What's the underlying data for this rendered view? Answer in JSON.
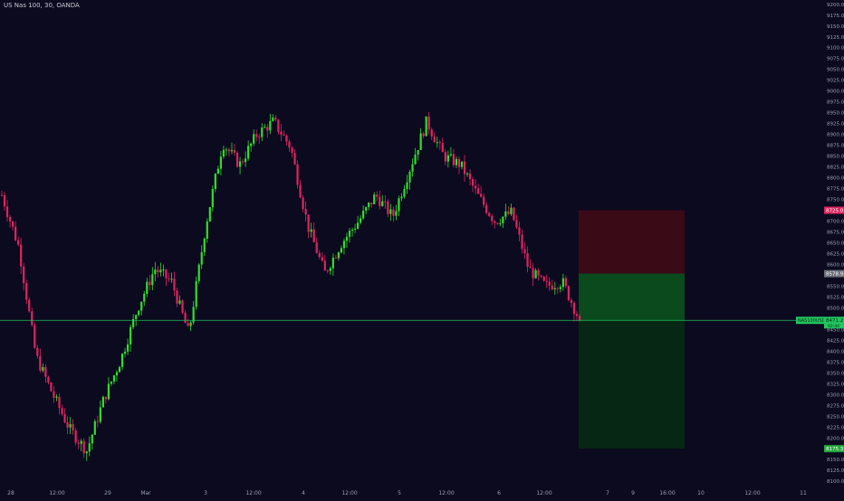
{
  "chart_data": {
    "type": "candlestick",
    "symbol_title": "US Nas 100, 30, OANDA",
    "colors": {
      "background": "#0b0a1f",
      "up": "#33dd2a",
      "down": "#e0245f",
      "axis_text": "#9aa0b0",
      "stop_zone": "#3a0a17",
      "target_zone": "#062a12",
      "price_line": "#22c55e"
    },
    "y_axis": {
      "range": [
        8090,
        9210
      ],
      "ticks": [
        "9225.0",
        "9200.0",
        "9175.0",
        "9150.0",
        "9125.0",
        "9100.0",
        "9075.0",
        "9050.0",
        "9025.0",
        "9000.0",
        "8975.0",
        "8950.0",
        "8925.0",
        "8900.0",
        "8875.0",
        "8850.0",
        "8825.0",
        "8800.0",
        "8775.0",
        "8750.0",
        "8725.0",
        "8700.0",
        "8675.0",
        "8650.0",
        "8625.0",
        "8600.0",
        "8575.0",
        "8550.0",
        "8525.0",
        "8500.0",
        "8475.0",
        "8450.0",
        "8425.0",
        "8400.0",
        "8375.0",
        "8350.0",
        "8325.0",
        "8300.0",
        "8275.0",
        "8250.0",
        "8225.0",
        "8200.0",
        "8175.0",
        "8150.0",
        "8125.0",
        "8100.0"
      ]
    },
    "x_axis": {
      "labels": [
        "28",
        "12:00",
        "29",
        "Mar",
        "3",
        "12:00",
        "4",
        "12:00",
        "5",
        "12:00",
        "6",
        "12:00",
        "7",
        "9",
        "16:00",
        "10",
        "12:00",
        "11"
      ]
    },
    "price_labels": {
      "stop": "8725.0",
      "entry": "8578.9",
      "last_name": "NAS100USD",
      "last": "8471.2",
      "last_sub": "02:44",
      "target": "8175.3"
    },
    "position": {
      "stop": 8725.0,
      "entry": 8578.9,
      "target": 8175.3,
      "current": 8471.2
    },
    "anchors": [
      8760,
      8640,
      8390,
      8300,
      8220,
      8170,
      8290,
      8380,
      8500,
      8590,
      8560,
      8440,
      8690,
      8880,
      8830,
      8900,
      8930,
      8870,
      8690,
      8580,
      8650,
      8700,
      8760,
      8710,
      8820,
      8930,
      8850,
      8830,
      8760,
      8700,
      8720,
      8590,
      8550,
      8560,
      8471.2
    ]
  }
}
